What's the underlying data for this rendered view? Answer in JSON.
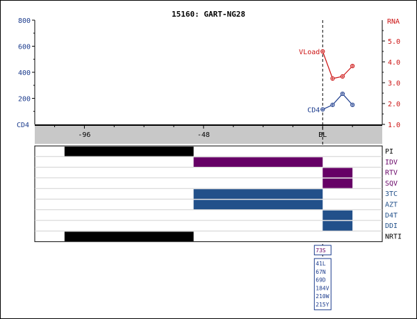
{
  "title": "15160: GART-NG28",
  "colors": {
    "cd4": "#1a3a8c",
    "rna": "#cc1111",
    "pi": "#000000",
    "idv": "#660066",
    "rtv": "#660066",
    "sqv": "#660066",
    "tc3": "#22508a",
    "azt": "#22508a",
    "d4t": "#22508a",
    "ddi": "#22508a",
    "nrti": "#000000",
    "axis_band": "#c8c8c8",
    "grid": "#d0d0d0"
  },
  "chart_data": {
    "type": "line",
    "title": "15160: GART-NG28",
    "x_ticks": [
      {
        "value": -96,
        "label": "-96"
      },
      {
        "value": -48,
        "label": "-48"
      },
      {
        "value": 0,
        "label": "BL"
      }
    ],
    "xlim": [
      -116,
      24
    ],
    "left_axis": {
      "label": "CD4",
      "ylim": [
        0,
        800
      ],
      "ticks": [
        200,
        400,
        600,
        800
      ]
    },
    "right_axis": {
      "label": "RNA",
      "ylim": [
        1.0,
        6.0
      ],
      "ticks": [
        "1.0",
        "2.0",
        "3.0",
        "4.0",
        "5.0"
      ]
    },
    "series": [
      {
        "name": "CD4",
        "axis": "left",
        "color": "#1a3a8c",
        "x": [
          0,
          4,
          8,
          12
        ],
        "y": [
          115,
          150,
          235,
          150
        ]
      },
      {
        "name": "VLoad",
        "axis": "right",
        "color": "#cc1111",
        "x": [
          0,
          4,
          8,
          12
        ],
        "y": [
          4.5,
          3.2,
          3.3,
          3.8
        ]
      }
    ],
    "baseline_label_cd4": "CD4",
    "baseline_label_rna": "VLoad",
    "drug_rows": [
      {
        "label": "PI",
        "color": "#000000",
        "segments": [
          [
            -104,
            -52
          ]
        ]
      },
      {
        "label": "IDV",
        "color": "#660066",
        "segments": [
          [
            -52,
            0
          ]
        ]
      },
      {
        "label": "RTV",
        "color": "#660066",
        "segments": [
          [
            0,
            12
          ]
        ]
      },
      {
        "label": "SQV",
        "color": "#660066",
        "segments": [
          [
            0,
            12
          ]
        ]
      },
      {
        "label": "3TC",
        "color": "#22508a",
        "segments": [
          [
            -52,
            0
          ]
        ]
      },
      {
        "label": "AZT",
        "color": "#22508a",
        "segments": [
          [
            -52,
            0
          ]
        ]
      },
      {
        "label": "D4T",
        "color": "#22508a",
        "segments": [
          [
            0,
            12
          ]
        ]
      },
      {
        "label": "DDI",
        "color": "#22508a",
        "segments": [
          [
            0,
            12
          ]
        ]
      },
      {
        "label": "NRTI",
        "color": "#000000",
        "segments": [
          [
            -104,
            -52
          ]
        ]
      }
    ],
    "mutations": {
      "pi": [
        "73S"
      ],
      "rt": [
        "41L",
        "67N",
        "69D",
        "184V",
        "210W",
        "215Y"
      ]
    }
  }
}
